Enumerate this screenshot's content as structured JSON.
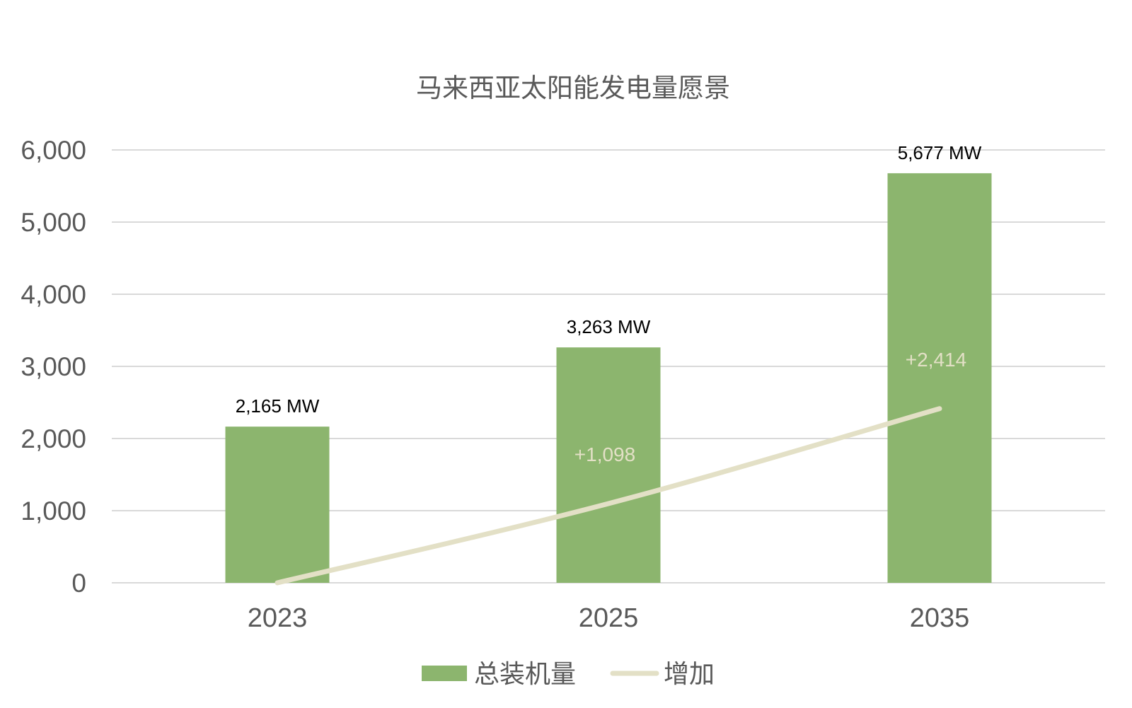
{
  "chart_data": {
    "type": "bar",
    "title": "马来西亚太阳能发电量愿景",
    "categories": [
      "2023",
      "2025",
      "2035"
    ],
    "ylim": [
      0,
      6000
    ],
    "yticks": [
      0,
      1000,
      2000,
      3000,
      4000,
      5000,
      6000
    ],
    "ytick_labels": [
      "0",
      "1,000",
      "2,000",
      "3,000",
      "4,000",
      "5,000",
      "6,000"
    ],
    "grid": true,
    "legend_position": "bottom",
    "series": [
      {
        "name": "总装机量",
        "type": "bar",
        "color": "#8cb56e",
        "values": [
          2165,
          3263,
          5677
        ],
        "labels": [
          "2,165 MW",
          "3,263 MW",
          "5,677 MW"
        ]
      },
      {
        "name": "增加",
        "type": "line",
        "color": "#e3e0c6",
        "values": [
          0,
          1098,
          2414
        ],
        "labels": [
          "",
          "+1,098",
          "+2,414"
        ]
      }
    ]
  }
}
